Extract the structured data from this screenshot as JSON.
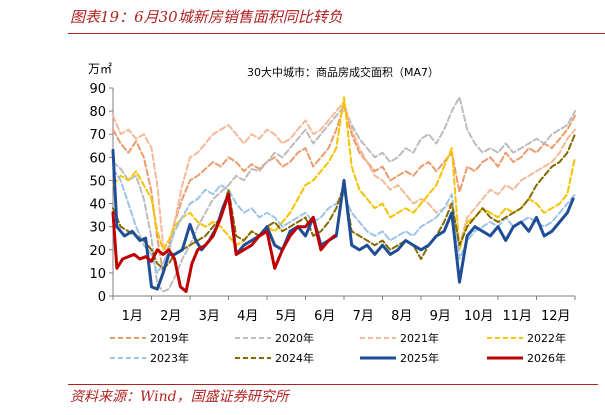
{
  "header": {
    "figure_title": "图表19：6月30城新房销售面积同比转负"
  },
  "footer": {
    "source": "资料来源：Wind，国盛证券研究所"
  },
  "chart_data": {
    "type": "line",
    "title": "30大中城市：商品房成交面积（MA7）",
    "unit": "万㎡",
    "xlabel": "",
    "ylabel": "万㎡",
    "ylim": [
      0,
      90
    ],
    "yticks": [
      0,
      10,
      20,
      30,
      40,
      50,
      60,
      70,
      80,
      90
    ],
    "categories": [
      "1月",
      "2月",
      "3月",
      "4月",
      "5月",
      "6月",
      "7月",
      "8月",
      "9月",
      "10月",
      "11月",
      "12月"
    ],
    "x_unit": "month (1 = start of January, 13 = end of December)",
    "grid": false,
    "legend_position": "bottom",
    "series": [
      {
        "name": "2019年",
        "color": "#ec9b6c",
        "dash": "6,3",
        "width": 2,
        "x": [
          1.0,
          1.2,
          1.4,
          1.6,
          1.8,
          2.0,
          2.15,
          2.3,
          2.45,
          2.6,
          2.8,
          3.0,
          3.2,
          3.4,
          3.6,
          3.8,
          4.0,
          4.2,
          4.4,
          4.6,
          4.8,
          5.0,
          5.2,
          5.4,
          5.6,
          5.8,
          6.0,
          6.2,
          6.4,
          6.6,
          6.8,
          7.0,
          7.2,
          7.4,
          7.6,
          7.8,
          8.0,
          8.2,
          8.4,
          8.6,
          8.8,
          9.0,
          9.2,
          9.4,
          9.6,
          9.8,
          10.0,
          10.2,
          10.4,
          10.6,
          10.8,
          11.0,
          11.2,
          11.4,
          11.6,
          11.8,
          12.0,
          12.2,
          12.4,
          12.6,
          12.8,
          13.0
        ],
        "values": [
          72,
          66,
          62,
          67,
          60,
          45,
          25,
          10,
          22,
          32,
          42,
          50,
          52,
          55,
          58,
          56,
          60,
          58,
          54,
          57,
          55,
          58,
          60,
          56,
          58,
          62,
          64,
          56,
          60,
          64,
          72,
          82,
          70,
          62,
          58,
          54,
          56,
          50,
          52,
          54,
          52,
          56,
          58,
          54,
          58,
          62,
          45,
          56,
          54,
          58,
          60,
          56,
          62,
          58,
          60,
          64,
          62,
          66,
          64,
          68,
          72,
          78
        ]
      },
      {
        "name": "2020年",
        "color": "#bcbcbc",
        "dash": "6,3",
        "width": 2,
        "x": [
          1.0,
          1.2,
          1.4,
          1.6,
          1.8,
          2.0,
          2.15,
          2.3,
          2.45,
          2.6,
          2.8,
          3.0,
          3.2,
          3.4,
          3.6,
          3.8,
          4.0,
          4.2,
          4.4,
          4.6,
          4.8,
          5.0,
          5.2,
          5.4,
          5.6,
          5.8,
          6.0,
          6.2,
          6.4,
          6.6,
          6.8,
          7.0,
          7.2,
          7.4,
          7.6,
          7.8,
          8.0,
          8.2,
          8.4,
          8.6,
          8.8,
          9.0,
          9.2,
          9.4,
          9.6,
          9.8,
          10.0,
          10.2,
          10.4,
          10.6,
          10.8,
          11.0,
          11.2,
          11.4,
          11.6,
          11.8,
          12.0,
          12.2,
          12.4,
          12.6,
          12.8,
          13.0
        ],
        "values": [
          58,
          55,
          50,
          52,
          42,
          25,
          5,
          2,
          3,
          8,
          16,
          22,
          30,
          36,
          42,
          45,
          48,
          52,
          50,
          55,
          54,
          58,
          62,
          60,
          64,
          68,
          72,
          66,
          70,
          74,
          78,
          82,
          74,
          68,
          64,
          60,
          62,
          58,
          60,
          64,
          62,
          68,
          70,
          66,
          72,
          80,
          86,
          72,
          66,
          62,
          64,
          62,
          66,
          62,
          64,
          66,
          68,
          66,
          70,
          72,
          74,
          80
        ]
      },
      {
        "name": "2021年",
        "color": "#f4b997",
        "dash": "6,3",
        "width": 2,
        "x": [
          1.0,
          1.2,
          1.4,
          1.6,
          1.8,
          2.0,
          2.15,
          2.3,
          2.45,
          2.6,
          2.8,
          3.0,
          3.2,
          3.4,
          3.6,
          3.8,
          4.0,
          4.2,
          4.4,
          4.6,
          4.8,
          5.0,
          5.2,
          5.4,
          5.6,
          5.8,
          6.0,
          6.2,
          6.4,
          6.6,
          6.8,
          7.0,
          7.2,
          7.4,
          7.6,
          7.8,
          8.0,
          8.2,
          8.4,
          8.6,
          8.8,
          9.0,
          9.2,
          9.4,
          9.6,
          9.8,
          10.0,
          10.2,
          10.4,
          10.6,
          10.8,
          11.0,
          11.2,
          11.4,
          11.6,
          11.8,
          12.0,
          12.2,
          12.4,
          12.6,
          12.8,
          13.0
        ],
        "values": [
          78,
          70,
          72,
          68,
          70,
          64,
          48,
          22,
          18,
          32,
          48,
          60,
          62,
          66,
          70,
          72,
          74,
          70,
          66,
          70,
          68,
          72,
          70,
          66,
          68,
          72,
          76,
          70,
          72,
          76,
          80,
          84,
          72,
          64,
          58,
          52,
          50,
          46,
          48,
          44,
          40,
          42,
          40,
          36,
          38,
          40,
          22,
          34,
          38,
          42,
          46,
          44,
          48,
          46,
          50,
          52,
          54,
          56,
          58,
          62,
          68,
          72
        ]
      },
      {
        "name": "2022年",
        "color": "#f5c300",
        "dash": "6,3",
        "width": 2,
        "x": [
          1.0,
          1.2,
          1.4,
          1.6,
          1.8,
          2.0,
          2.15,
          2.3,
          2.45,
          2.6,
          2.8,
          3.0,
          3.2,
          3.4,
          3.6,
          3.8,
          4.0,
          4.2,
          4.4,
          4.6,
          4.8,
          5.0,
          5.2,
          5.4,
          5.6,
          5.8,
          6.0,
          6.2,
          6.4,
          6.6,
          6.8,
          7.0,
          7.2,
          7.4,
          7.6,
          7.8,
          8.0,
          8.2,
          8.4,
          8.6,
          8.8,
          9.0,
          9.2,
          9.4,
          9.6,
          9.8,
          10.0,
          10.2,
          10.4,
          10.6,
          10.8,
          11.0,
          11.2,
          11.4,
          11.6,
          11.8,
          12.0,
          12.2,
          12.4,
          12.6,
          12.8,
          13.0
        ],
        "values": [
          48,
          52,
          50,
          54,
          48,
          42,
          28,
          20,
          24,
          30,
          34,
          36,
          32,
          30,
          32,
          30,
          26,
          22,
          24,
          28,
          26,
          30,
          28,
          32,
          36,
          42,
          48,
          50,
          54,
          58,
          64,
          86,
          56,
          46,
          42,
          38,
          40,
          34,
          36,
          38,
          36,
          40,
          44,
          48,
          56,
          64,
          20,
          32,
          34,
          38,
          36,
          34,
          38,
          36,
          38,
          42,
          40,
          36,
          38,
          40,
          44,
          60
        ]
      },
      {
        "name": "2023年",
        "color": "#9dc3e6",
        "dash": "6,3",
        "width": 2,
        "x": [
          1.0,
          1.2,
          1.4,
          1.6,
          1.8,
          2.0,
          2.15,
          2.3,
          2.45,
          2.6,
          2.8,
          3.0,
          3.2,
          3.4,
          3.6,
          3.8,
          4.0,
          4.2,
          4.4,
          4.6,
          4.8,
          5.0,
          5.2,
          5.4,
          5.6,
          5.8,
          6.0,
          6.2,
          6.4,
          6.6,
          6.8,
          7.0,
          7.2,
          7.4,
          7.6,
          7.8,
          8.0,
          8.2,
          8.4,
          8.6,
          8.8,
          9.0,
          9.2,
          9.4,
          9.6,
          9.8,
          10.0,
          10.2,
          10.4,
          10.6,
          10.8,
          11.0,
          11.2,
          11.4,
          11.6,
          11.8,
          12.0,
          12.2,
          12.4,
          12.6,
          12.8,
          13.0
        ],
        "values": [
          55,
          50,
          40,
          30,
          22,
          18,
          10,
          14,
          20,
          28,
          34,
          40,
          42,
          46,
          44,
          48,
          46,
          40,
          36,
          38,
          34,
          36,
          34,
          30,
          32,
          34,
          36,
          32,
          34,
          38,
          40,
          44,
          36,
          32,
          28,
          26,
          28,
          24,
          26,
          28,
          26,
          30,
          32,
          34,
          38,
          44,
          16,
          24,
          28,
          30,
          32,
          30,
          34,
          30,
          32,
          34,
          32,
          30,
          32,
          36,
          40,
          44
        ]
      },
      {
        "name": "2024年",
        "color": "#846a00",
        "dash": "6,3",
        "width": 2,
        "x": [
          1.0,
          1.2,
          1.4,
          1.6,
          1.8,
          2.0,
          2.15,
          2.3,
          2.45,
          2.6,
          2.8,
          3.0,
          3.2,
          3.4,
          3.6,
          3.8,
          4.0,
          4.2,
          4.4,
          4.6,
          4.8,
          5.0,
          5.2,
          5.4,
          5.6,
          5.8,
          6.0,
          6.2,
          6.4,
          6.6,
          6.8,
          7.0,
          7.2,
          7.4,
          7.6,
          7.8,
          8.0,
          8.2,
          8.4,
          8.6,
          8.8,
          9.0,
          9.2,
          9.4,
          9.6,
          9.8,
          10.0,
          10.2,
          10.4,
          10.6,
          10.8,
          11.0,
          11.2,
          11.4,
          11.6,
          11.8,
          12.0,
          12.2,
          12.4,
          12.6,
          12.8,
          13.0
        ],
        "values": [
          38,
          30,
          28,
          26,
          24,
          20,
          14,
          12,
          14,
          18,
          20,
          22,
          24,
          26,
          30,
          34,
          46,
          26,
          24,
          28,
          26,
          30,
          32,
          28,
          30,
          32,
          34,
          26,
          28,
          32,
          38,
          48,
          28,
          26,
          24,
          22,
          24,
          20,
          22,
          24,
          22,
          16,
          22,
          26,
          32,
          40,
          22,
          30,
          34,
          38,
          34,
          32,
          34,
          36,
          38,
          42,
          48,
          52,
          56,
          58,
          62,
          70
        ]
      },
      {
        "name": "2025年",
        "color": "#1f4e96",
        "dash": "",
        "width": 3,
        "x": [
          1.0,
          1.1,
          1.3,
          1.5,
          1.7,
          1.85,
          2.0,
          2.15,
          2.3,
          2.45,
          2.6,
          2.8,
          3.0,
          3.15,
          3.3,
          3.5,
          3.7,
          3.85,
          4.0,
          4.2,
          4.4,
          4.6,
          4.8,
          5.0,
          5.2,
          5.4,
          5.6,
          5.8,
          6.0,
          6.2,
          6.4,
          6.6,
          6.8,
          7.0,
          7.2,
          7.4,
          7.6,
          7.8,
          8.0,
          8.2,
          8.4,
          8.6,
          8.8,
          9.0,
          9.2,
          9.4,
          9.6,
          9.8,
          10.0,
          10.2,
          10.4,
          10.6,
          10.8,
          11.0,
          11.2,
          11.4,
          11.6,
          11.8,
          12.0,
          12.2,
          12.4,
          12.6,
          12.8,
          12.95
        ],
        "values": [
          63,
          30,
          26,
          28,
          24,
          25,
          4,
          3,
          10,
          18,
          18,
          20,
          31,
          24,
          20,
          24,
          30,
          38,
          44,
          18,
          22,
          24,
          26,
          30,
          22,
          20,
          28,
          30,
          26,
          34,
          22,
          24,
          26,
          50,
          22,
          20,
          22,
          18,
          22,
          18,
          20,
          24,
          22,
          20,
          22,
          26,
          28,
          36,
          6,
          26,
          30,
          28,
          26,
          30,
          24,
          30,
          32,
          28,
          34,
          26,
          28,
          32,
          36,
          42
        ]
      },
      {
        "name": "2026年",
        "color": "#c00000",
        "dash": "",
        "width": 3,
        "x": [
          1.0,
          1.1,
          1.25,
          1.4,
          1.55,
          1.7,
          1.85,
          2.0,
          2.15,
          2.3,
          2.45,
          2.6,
          2.75,
          2.9,
          3.05,
          3.2,
          3.4,
          3.6,
          3.8,
          4.0,
          4.2,
          4.4,
          4.6,
          4.8,
          5.0,
          5.2,
          5.4,
          5.6,
          5.8,
          6.0,
          6.2,
          6.4,
          6.6,
          6.75
        ],
        "values": [
          36,
          12,
          16,
          17,
          18,
          16,
          17,
          15,
          20,
          18,
          20,
          16,
          4,
          2,
          14,
          20,
          22,
          26,
          34,
          44,
          18,
          20,
          22,
          26,
          28,
          12,
          20,
          26,
          30,
          30,
          34,
          20,
          24,
          26
        ]
      }
    ]
  }
}
